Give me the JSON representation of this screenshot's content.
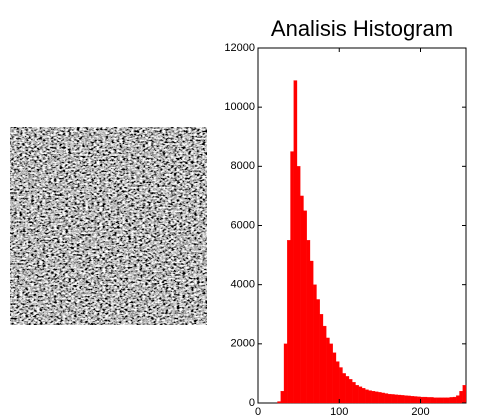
{
  "chart_data": {
    "type": "histogram",
    "title": "Analisis Histogram",
    "bins": [
      0,
      4,
      8,
      12,
      16,
      20,
      24,
      28,
      32,
      36,
      40,
      44,
      48,
      52,
      56,
      60,
      64,
      68,
      72,
      76,
      80,
      84,
      88,
      92,
      96,
      100,
      104,
      108,
      112,
      116,
      120,
      124,
      128,
      132,
      136,
      140,
      144,
      148,
      152,
      156,
      160,
      164,
      168,
      172,
      176,
      180,
      184,
      188,
      192,
      196,
      200,
      204,
      208,
      212,
      216,
      220,
      224,
      228,
      232,
      236,
      240,
      244,
      248,
      252,
      256
    ],
    "values": [
      0,
      0,
      0,
      0,
      0,
      0,
      50,
      400,
      2000,
      5500,
      8500,
      10900,
      8000,
      7000,
      6500,
      5500,
      4800,
      4000,
      3500,
      3000,
      2600,
      2200,
      2000,
      1700,
      1400,
      1200,
      1000,
      900,
      800,
      700,
      600,
      550,
      500,
      450,
      420,
      400,
      380,
      360,
      340,
      320,
      300,
      290,
      280,
      270,
      260,
      250,
      240,
      230,
      220,
      210,
      200,
      200,
      190,
      190,
      180,
      180,
      180,
      180,
      180,
      190,
      200,
      250,
      400,
      600
    ],
    "color": "#ff0000",
    "xlim": [
      0,
      256
    ],
    "xticks": [
      0,
      100,
      200
    ],
    "ylim": [
      0,
      12000
    ],
    "yticks": [
      0,
      2000,
      4000,
      6000,
      8000,
      10000,
      12000
    ]
  }
}
